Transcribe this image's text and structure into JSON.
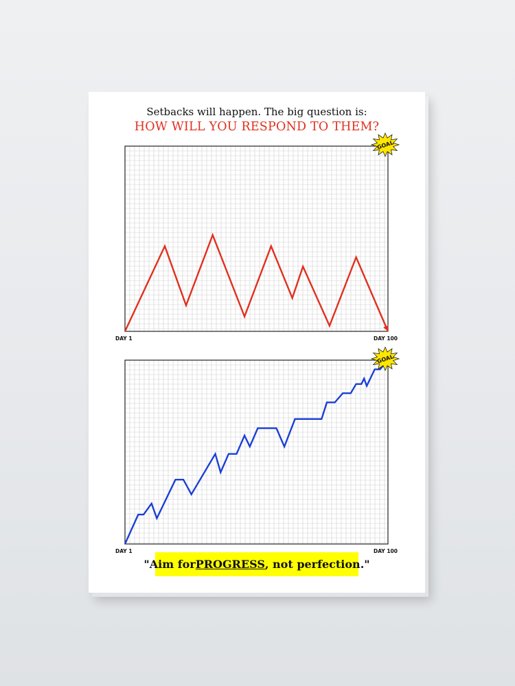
{
  "poster": {
    "headline": "Setbacks will happen. The big question is:",
    "subhead": "HOW WILL YOU RESPOND TO THEM?",
    "goal_label": "GOAL",
    "quote": {
      "open": "\"Aim for ",
      "emphasis": "PROGRESS",
      "close": ", not perfection.\""
    }
  },
  "colors": {
    "setback_line": "#e0301e",
    "progress_line": "#1a3fd6",
    "grid_minor": "#cfcfcf",
    "goal_burst": "#ffe600",
    "quote_background": "#ffff00"
  },
  "chart_data": [
    {
      "type": "line",
      "title": "",
      "xlabel": "",
      "ylabel": "",
      "x_tick_labels": [
        "DAY 1",
        "DAY 100"
      ],
      "xlim": [
        1,
        100
      ],
      "ylim": [
        0,
        100
      ],
      "grid": true,
      "series": [
        {
          "color": "#e0301e",
          "arrow_end": true,
          "x": [
            1,
            16,
            24,
            34,
            46,
            56,
            64,
            68,
            78,
            88,
            100
          ],
          "y": [
            0,
            46,
            14,
            52,
            8,
            46,
            18,
            35,
            3,
            40,
            0
          ]
        }
      ]
    },
    {
      "type": "line",
      "title": "",
      "xlabel": "",
      "ylabel": "",
      "x_tick_labels": [
        "DAY 1",
        "DAY 100"
      ],
      "xlim": [
        1,
        100
      ],
      "ylim": [
        0,
        100
      ],
      "grid": true,
      "series": [
        {
          "color": "#1a3fd6",
          "x": [
            1,
            6,
            8,
            11,
            13,
            20,
            23,
            26,
            35,
            37,
            40,
            43,
            46,
            48,
            51,
            58,
            61,
            65,
            75,
            77,
            80,
            83,
            86,
            88,
            90,
            91,
            92,
            95,
            96,
            97,
            100
          ],
          "y": [
            0,
            16,
            16,
            22,
            14,
            35,
            35,
            27,
            49,
            39,
            49,
            49,
            59,
            53,
            63,
            63,
            53,
            68,
            68,
            77,
            77,
            82,
            82,
            87,
            87,
            90,
            86,
            95,
            95,
            95,
            100
          ]
        }
      ]
    }
  ]
}
